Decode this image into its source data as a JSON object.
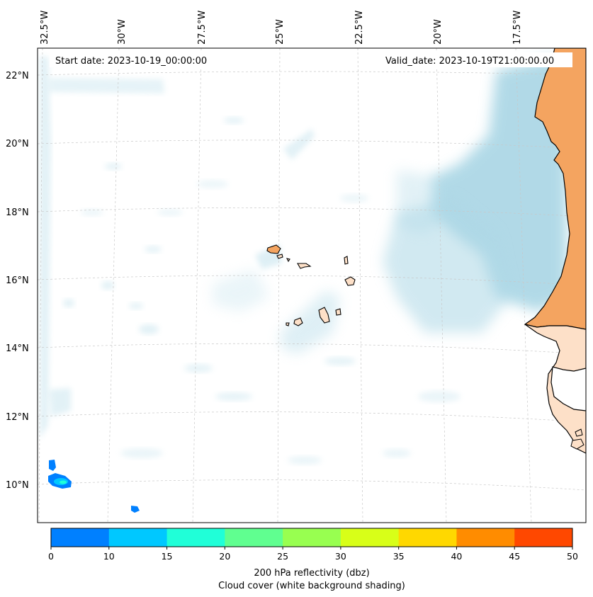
{
  "header": {
    "start_date": "Start date: 2023-10-19_00:00:00",
    "valid_date": "Valid_date: 2023-10-19T21:00:00.00"
  },
  "axes": {
    "longitude_labels": [
      "32.5°W",
      "30°W",
      "27.5°W",
      "25°W",
      "22.5°W",
      "20°W",
      "17.5°W"
    ],
    "latitude_labels": [
      "22°N",
      "20°N",
      "18°N",
      "16°N",
      "14°N",
      "12°N",
      "10°N"
    ]
  },
  "colorbar": {
    "label_line1": "200 hPa reflectivity (dbz)",
    "label_line2": "Cloud cover (white background shading)",
    "ticks": [
      "0",
      "10",
      "15",
      "20",
      "25",
      "30",
      "35",
      "40",
      "45",
      "50"
    ],
    "colors": [
      "#0080ff",
      "#00c8ff",
      "#20ffd8",
      "#60ff90",
      "#98ff50",
      "#d8ff18",
      "#ffd800",
      "#ff8c00",
      "#ff4800"
    ]
  },
  "map_colors": {
    "ocean": "#ffffff",
    "cloud": "#add8e6",
    "land": "#f4a460",
    "land_light": "#fde0c8",
    "coastline": "#000000"
  }
}
